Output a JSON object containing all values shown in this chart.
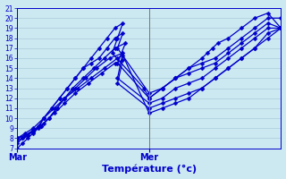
{
  "xlabel": "Température (°c)",
  "bg_color": "#cce8f0",
  "grid_color": "#aaccdd",
  "line_color": "#0000cc",
  "ylim": [
    7,
    21
  ],
  "yticks": [
    7,
    8,
    9,
    10,
    11,
    12,
    13,
    14,
    15,
    16,
    17,
    18,
    19,
    20,
    21
  ],
  "xtick_labels": [
    "Mar",
    "Mer"
  ],
  "xtick_positions": [
    0.0,
    0.5
  ],
  "series": [
    {
      "x": [
        0.0,
        0.02,
        0.04,
        0.06,
        0.08,
        0.1,
        0.13,
        0.16,
        0.19,
        0.22,
        0.25,
        0.28,
        0.31,
        0.34,
        0.37,
        0.4,
        0.38,
        0.36,
        0.48,
        0.5,
        0.55,
        0.6,
        0.65,
        0.7,
        0.72,
        0.74,
        0.76,
        0.8,
        0.85,
        0.9,
        0.95,
        1.0
      ],
      "y": [
        7,
        7.5,
        8,
        8.5,
        9,
        10,
        11,
        12,
        13,
        14,
        15,
        16,
        17,
        18,
        19,
        19.5,
        18,
        16.5,
        13,
        12,
        13,
        14,
        15,
        16,
        16.5,
        17,
        17.5,
        18,
        19,
        20,
        20.5,
        19
      ]
    },
    {
      "x": [
        0.0,
        0.02,
        0.04,
        0.06,
        0.08,
        0.1,
        0.13,
        0.16,
        0.19,
        0.22,
        0.25,
        0.28,
        0.31,
        0.34,
        0.37,
        0.4,
        0.38,
        0.5,
        0.55,
        0.6,
        0.65,
        0.7,
        0.75,
        0.8,
        0.85,
        0.9,
        0.95,
        1.0
      ],
      "y": [
        7.5,
        8,
        8.3,
        8.7,
        9.2,
        10,
        11,
        12,
        13,
        14,
        15,
        15.5,
        16,
        17,
        18,
        18.5,
        17,
        12.5,
        13,
        14,
        15,
        15.5,
        16,
        17,
        18,
        19,
        20,
        20
      ]
    },
    {
      "x": [
        0.0,
        0.02,
        0.04,
        0.06,
        0.09,
        0.12,
        0.15,
        0.18,
        0.21,
        0.25,
        0.29,
        0.33,
        0.37,
        0.41,
        0.38,
        0.5,
        0.55,
        0.6,
        0.65,
        0.7,
        0.75,
        0.8,
        0.85,
        0.9,
        0.95,
        1.0
      ],
      "y": [
        7.8,
        8,
        8.3,
        8.7,
        9.2,
        10,
        11,
        12,
        13,
        14,
        15,
        16,
        17,
        17.5,
        15.5,
        12,
        13,
        14,
        14.5,
        15,
        15.5,
        16.5,
        17.5,
        18.5,
        19.5,
        19
      ]
    },
    {
      "x": [
        0.0,
        0.03,
        0.06,
        0.09,
        0.12,
        0.15,
        0.18,
        0.22,
        0.26,
        0.3,
        0.35,
        0.4,
        0.38,
        0.5,
        0.55,
        0.6,
        0.65,
        0.7,
        0.75,
        0.8,
        0.85,
        0.9,
        0.95,
        1.0
      ],
      "y": [
        8,
        8.3,
        8.7,
        9.2,
        10,
        11,
        12,
        13,
        14,
        15,
        16,
        16.5,
        14,
        11.5,
        12,
        13,
        13.5,
        14,
        15,
        16,
        17,
        18,
        19,
        19
      ]
    },
    {
      "x": [
        0.0,
        0.03,
        0.06,
        0.1,
        0.14,
        0.18,
        0.22,
        0.27,
        0.32,
        0.37,
        0.4,
        0.38,
        0.5,
        0.55,
        0.6,
        0.65,
        0.7,
        0.75,
        0.8,
        0.85,
        0.9,
        0.95,
        1.0
      ],
      "y": [
        8,
        8.3,
        8.8,
        9.5,
        10.5,
        11.5,
        12.5,
        13.5,
        14.5,
        15.5,
        15.8,
        13.5,
        11,
        11.5,
        12,
        12.5,
        13,
        14,
        15,
        16,
        17,
        18,
        19
      ]
    },
    {
      "x": [
        0.0,
        0.03,
        0.06,
        0.1,
        0.14,
        0.18,
        0.23,
        0.28,
        0.33,
        0.38,
        0.4,
        0.5,
        0.55,
        0.6,
        0.65,
        0.7,
        0.75,
        0.8,
        0.85,
        0.9,
        0.95,
        1.0
      ],
      "y": [
        8,
        8.5,
        9,
        10,
        11,
        12,
        13,
        14,
        15,
        16,
        16.3,
        10.5,
        11,
        11.5,
        12,
        13,
        14,
        15,
        16,
        17,
        18.5,
        19
      ]
    }
  ],
  "marker_size": 2.5,
  "line_width": 0.9
}
